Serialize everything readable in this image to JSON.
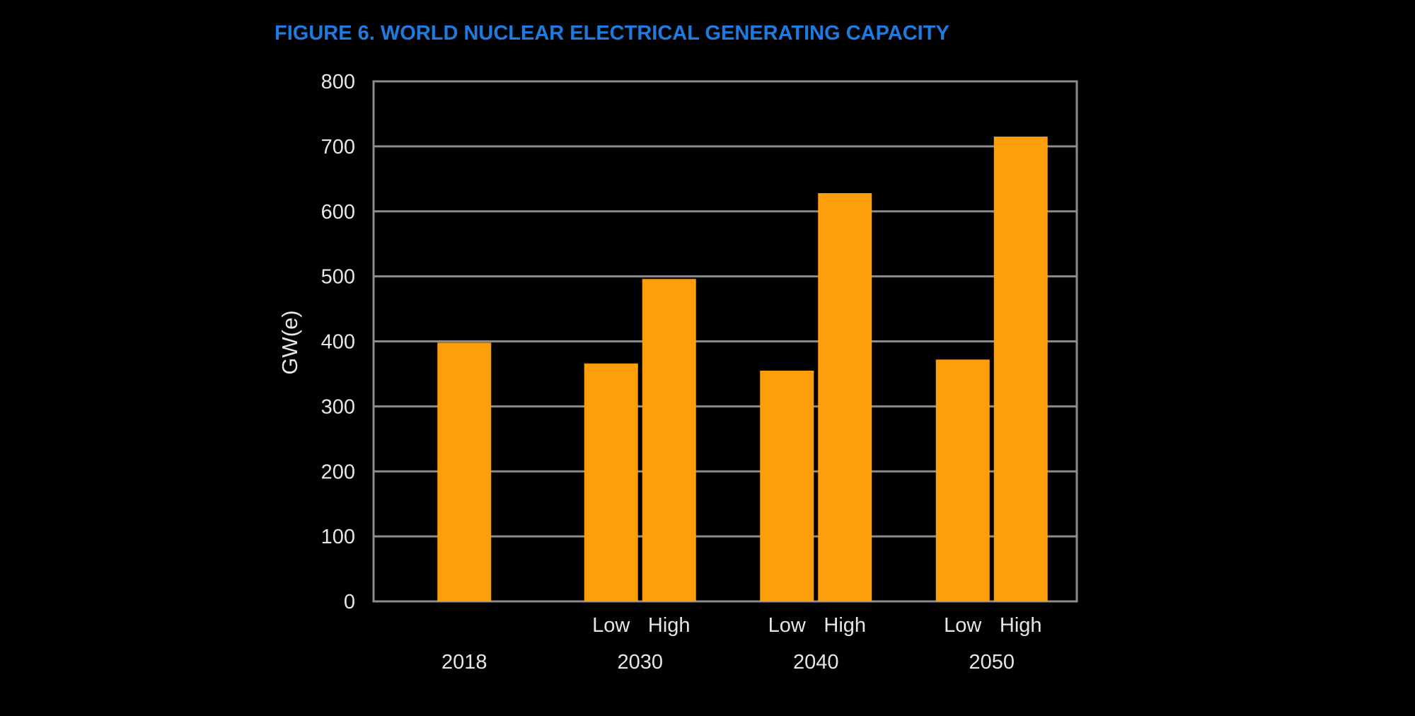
{
  "chart_data": {
    "type": "bar",
    "title": "FIGURE 6. WORLD NUCLEAR ELECTRICAL GENERATING CAPACITY",
    "xlabel": "",
    "ylabel": "GW(e)",
    "ylim": [
      0,
      800
    ],
    "yticks": [
      "0",
      "100",
      "200",
      "300",
      "400",
      "500",
      "600",
      "700",
      "800"
    ],
    "grid": true,
    "legend": "none",
    "groups": [
      {
        "label": "2018",
        "bars": [
          {
            "label": "",
            "value": 398
          }
        ]
      },
      {
        "label": "2030",
        "bars": [
          {
            "label": "Low",
            "value": 366
          },
          {
            "label": "High",
            "value": 496
          }
        ]
      },
      {
        "label": "2040",
        "bars": [
          {
            "label": "Low",
            "value": 355
          },
          {
            "label": "High",
            "value": 628
          }
        ]
      },
      {
        "label": "2050",
        "bars": [
          {
            "label": "Low",
            "value": 372
          },
          {
            "label": "High",
            "value": 715
          }
        ]
      }
    ]
  },
  "colors": {
    "background": "#000000",
    "bar": "#FF9E0B",
    "title": "#1F7BE0",
    "text": "#E6E6E6",
    "grid": "#8C8C8C"
  }
}
